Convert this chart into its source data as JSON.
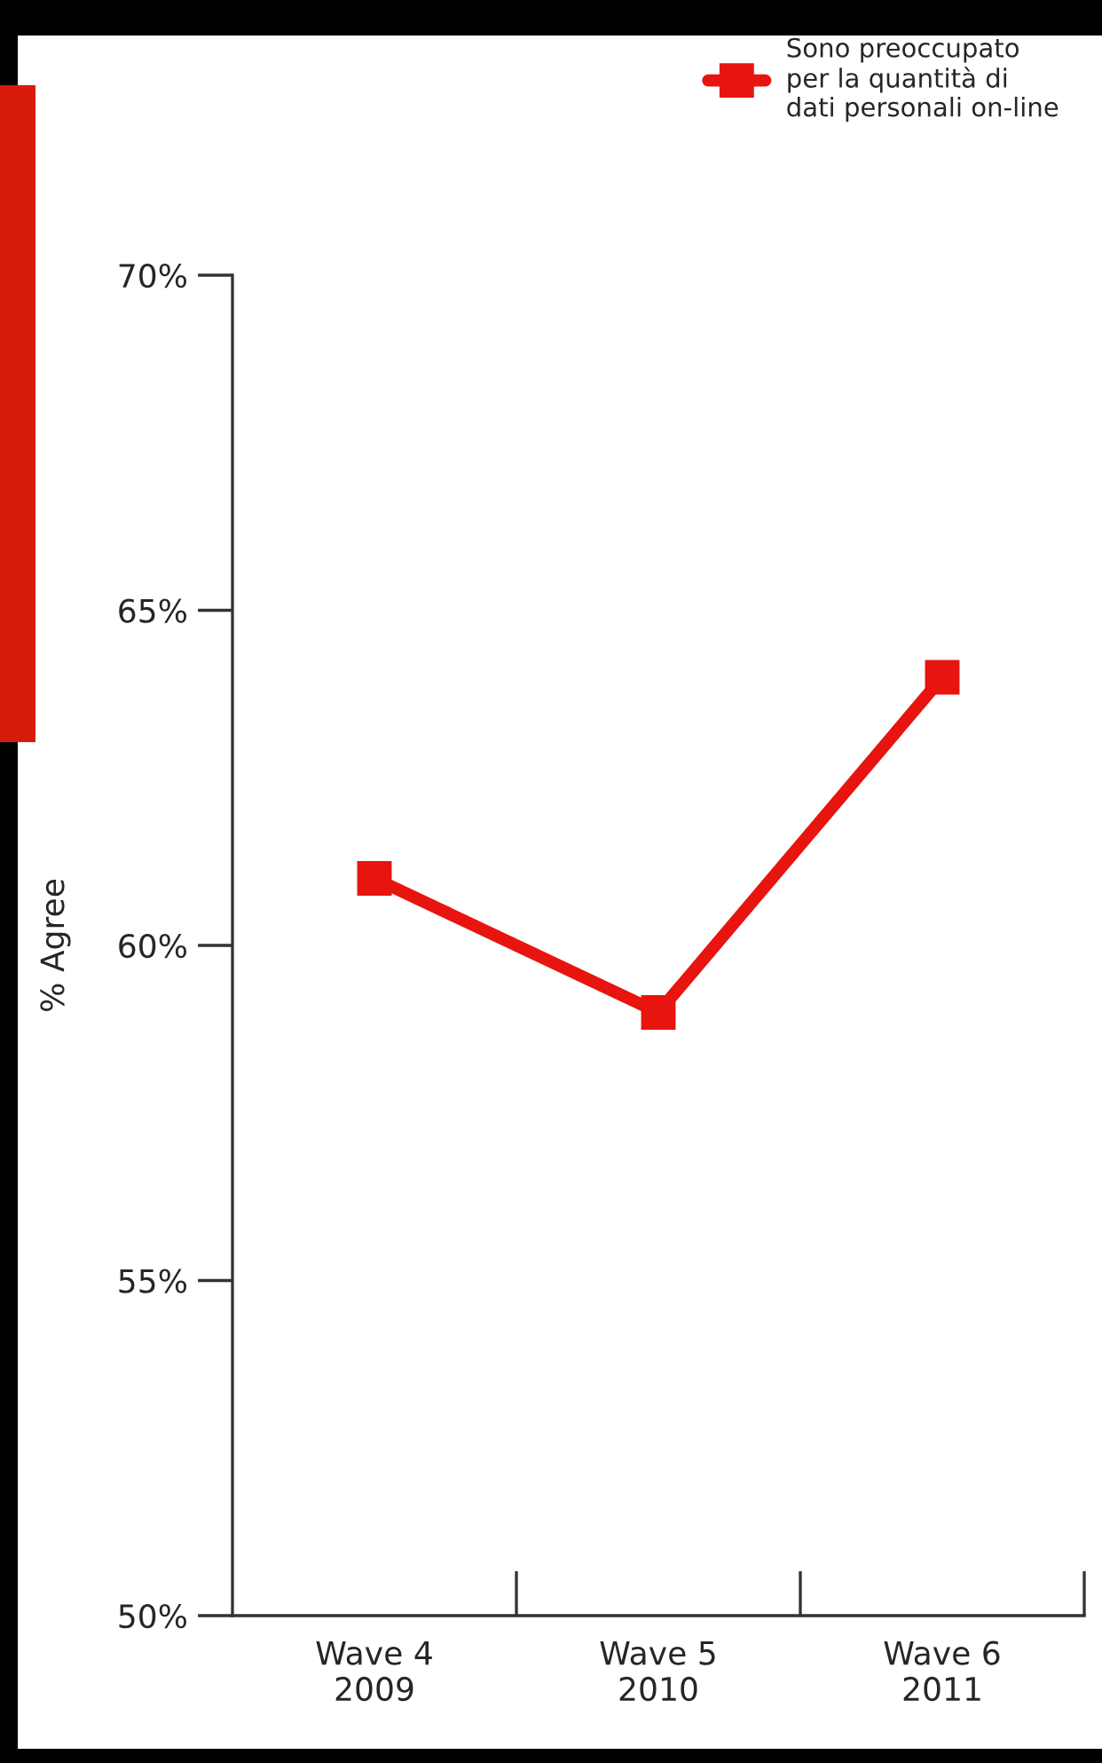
{
  "chart_data": {
    "type": "line",
    "ylabel": "% Agree",
    "categories": [
      "Wave 4\n2009",
      "Wave 5\n2010",
      "Wave 6\n2011"
    ],
    "series": [
      {
        "name": "Sono preoccupato\nper la quantità di\ndati personali on-line",
        "color": "#e8140f",
        "values": [
          61,
          59,
          64
        ]
      }
    ],
    "ylim": [
      50,
      70
    ],
    "yticks": [
      {
        "value": 50,
        "label": "50%"
      },
      {
        "value": 55,
        "label": "55%"
      },
      {
        "value": 60,
        "label": "60%"
      },
      {
        "value": 65,
        "label": "65%"
      },
      {
        "value": 70,
        "label": "70%"
      }
    ],
    "marker": "square",
    "line_style": "solid",
    "grid": false,
    "legend": "top right"
  }
}
